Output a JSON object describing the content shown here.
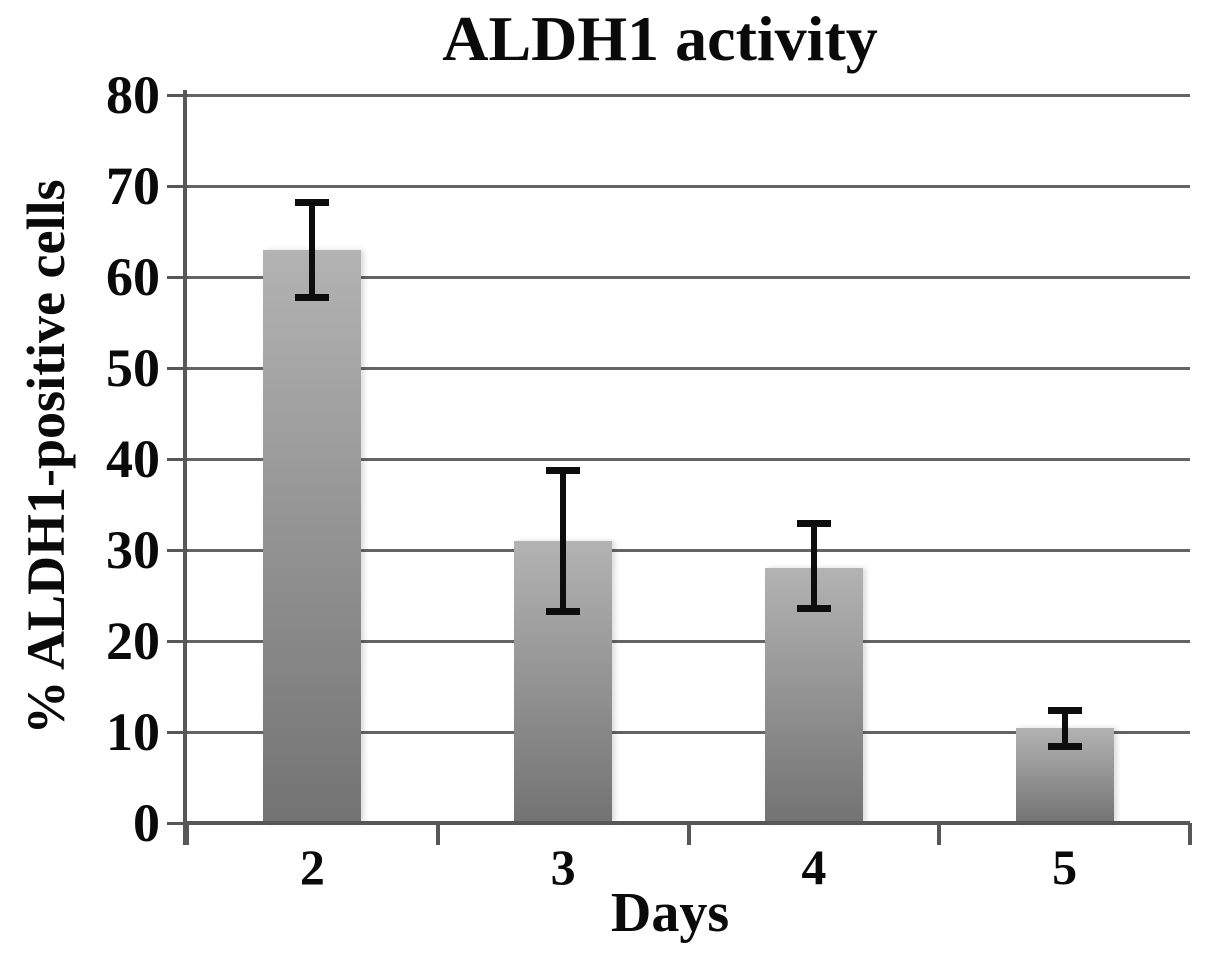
{
  "chart_data": {
    "type": "bar",
    "title": "ALDH1 activity",
    "xlabel": "Days",
    "ylabel": "% ALDH1-positive cells",
    "categories": [
      "2",
      "3",
      "4",
      "5"
    ],
    "values": [
      63,
      31,
      28,
      10.4
    ],
    "error_high": [
      68.2,
      38.8,
      33.0,
      12.4
    ],
    "error_low": [
      57.7,
      23.2,
      23.5,
      8.3
    ],
    "ylim": [
      0,
      80
    ],
    "ytick_step": 10,
    "ytick_labels": [
      "80",
      "70",
      "60",
      "50",
      "40",
      "30",
      "20",
      "10",
      "0"
    ],
    "grid": true,
    "legend_position": "none",
    "colors": {
      "bar_top": "#b3b3b3",
      "bar_bottom": "#737373",
      "gridline": "#646464",
      "axis": "#575757",
      "error_bar": "#0d0d0d",
      "text": "#0a0a0a",
      "background": "#ffffff"
    }
  }
}
